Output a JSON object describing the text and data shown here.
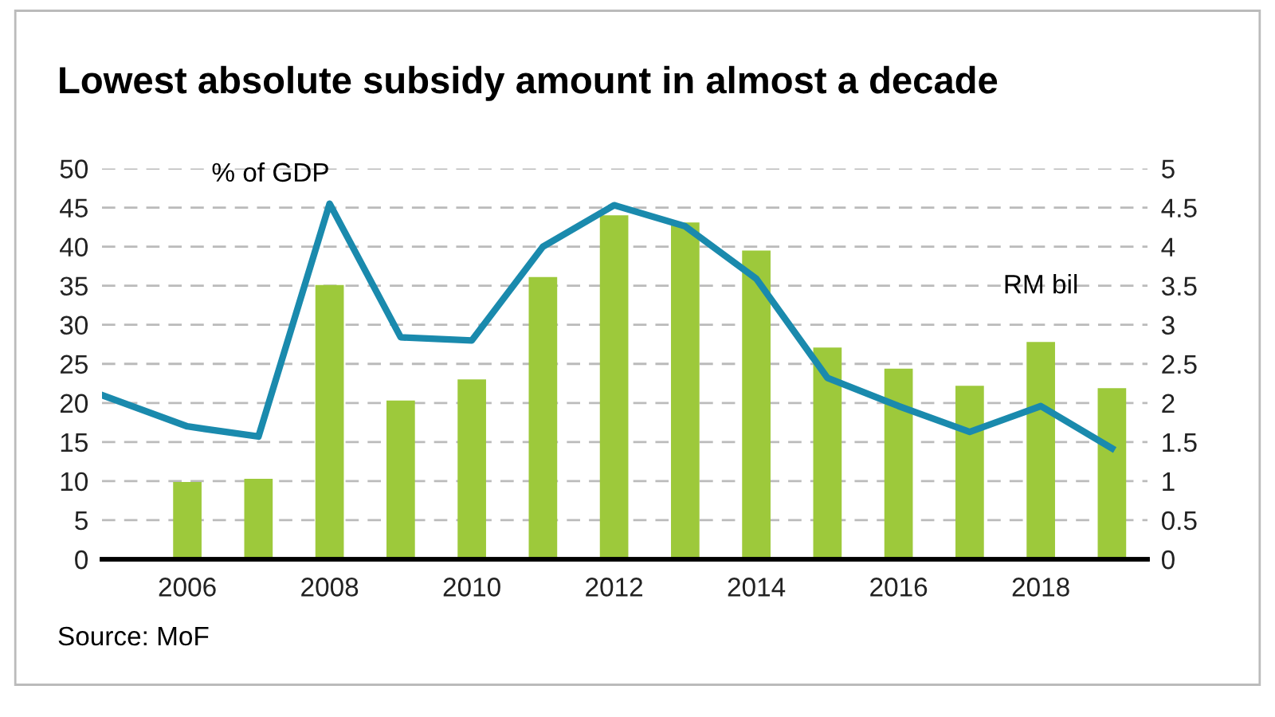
{
  "chart_data": {
    "type": "bar",
    "title": "Lowest absolute subsidy amount in almost a decade",
    "x": [
      2006,
      2007,
      2008,
      2009,
      2010,
      2011,
      2012,
      2013,
      2014,
      2015,
      2016,
      2017,
      2018,
      2019
    ],
    "series": [
      {
        "name": "RM bil",
        "color": "#9dc93b",
        "values": [
          9.9,
          10.3,
          35.1,
          20.3,
          23.0,
          36.1,
          44.0,
          43.1,
          39.5,
          27.1,
          24.4,
          22.2,
          27.8,
          21.9
        ]
      },
      {
        "name": "% of GDP",
        "type": "line",
        "axis": "y2",
        "color": "#1a8aad",
        "x": [
          2004.8,
          2006,
          2007,
          2008,
          2009,
          2010,
          2011,
          2012,
          2013,
          2014,
          2015,
          2016,
          2017,
          2018,
          2019
        ],
        "values": [
          2.1,
          1.7,
          1.57,
          4.55,
          2.84,
          2.8,
          4.0,
          4.53,
          4.26,
          3.59,
          2.32,
          1.96,
          1.63,
          1.96,
          1.42
        ]
      }
    ],
    "xlim": [
      2004.8,
      2019.5
    ],
    "xticks": [
      2006,
      2008,
      2010,
      2012,
      2014,
      2016,
      2018
    ],
    "ylim": [
      0,
      50
    ],
    "yticks": [
      0,
      5,
      10,
      15,
      20,
      25,
      30,
      35,
      40,
      45,
      50
    ],
    "y2lim": [
      0,
      5
    ],
    "y2ticks": [
      0,
      0.5,
      1,
      1.5,
      2,
      2.5,
      3,
      3.5,
      4,
      4.5,
      5
    ],
    "grid": "y",
    "legend": false,
    "annotations": [
      "Source: MoF"
    ]
  }
}
